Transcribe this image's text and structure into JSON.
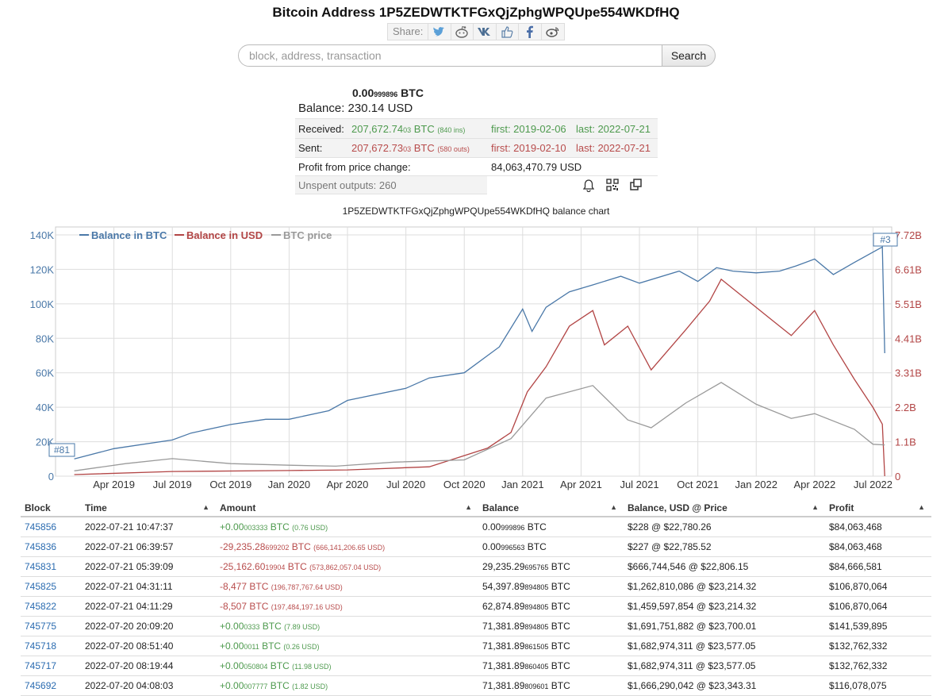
{
  "title": "Bitcoin Address 1P5ZEDWTKTFGxQjZphgWPQUpe554WKDfHQ",
  "share": {
    "label": "Share:",
    "icons": [
      "twitter-icon",
      "reddit-icon",
      "vk-icon",
      "like-icon",
      "facebook-icon",
      "weibo-icon"
    ]
  },
  "search": {
    "placeholder": "block, address, transaction",
    "button": "Search"
  },
  "summary": {
    "balance_btc_main": "0.00",
    "balance_btc_small": "999896",
    "balance_btc_unit": " BTC",
    "balance_usd": "Balance: 230.14 USD",
    "received_label": "Received:",
    "received_main": "207,672.74",
    "received_small": "03",
    "received_unit": " BTC",
    "received_ins": "(840 ins)",
    "received_first": "first: 2019-02-06",
    "received_last": "last: 2022-07-21",
    "sent_label": "Sent:",
    "sent_main": "207,672.73",
    "sent_small": "03",
    "sent_unit": " BTC",
    "sent_outs": "(580 outs)",
    "sent_first": "first: 2019-02-10",
    "sent_last": "last: 2022-07-21",
    "profit_label": "Profit from price change:",
    "profit_value": "84,063,470.79 USD",
    "unspent": "Unspent outputs: 260"
  },
  "chart_title": "1P5ZEDWTKTFGxQjZphgWPQUpe554WKDfHQ balance chart",
  "chart_data": {
    "type": "line",
    "x_ticks": [
      "Apr 2019",
      "Jul 2019",
      "Oct 2019",
      "Jan 2020",
      "Apr 2020",
      "Jul 2020",
      "Oct 2020",
      "Jan 2021",
      "Apr 2021",
      "Jul 2021",
      "Oct 2021",
      "Jan 2022",
      "Apr 2022",
      "Jul 2022"
    ],
    "y_left_ticks": [
      "140K",
      "120K",
      "100K",
      "80K",
      "60K",
      "40K",
      "20K",
      "0"
    ],
    "y_right_ticks": [
      "7.72B",
      "6.61B",
      "5.51B",
      "4.41B",
      "3.31B",
      "2.2B",
      "1.1B",
      "0"
    ],
    "ylim_left": [
      0,
      140000
    ],
    "ylim_right": [
      0,
      7.72
    ],
    "legend": [
      "Balance in BTC",
      "Balance in USD",
      "BTC price"
    ],
    "markers": [
      "#81",
      "#3"
    ],
    "colors": {
      "btc": "#4a78a8",
      "usd": "#b24545",
      "price": "#9a9a9a"
    },
    "series": [
      {
        "name": "Balance in BTC",
        "axis": "left",
        "x": [
          2019.08,
          2019.25,
          2019.5,
          2019.58,
          2019.75,
          2019.9,
          2020.0,
          2020.17,
          2020.25,
          2020.5,
          2020.6,
          2020.75,
          2020.9,
          2021.0,
          2021.04,
          2021.1,
          2021.2,
          2021.3,
          2021.42,
          2021.5,
          2021.67,
          2021.75,
          2021.83,
          2021.9,
          2022.0,
          2022.1,
          2022.17,
          2022.25,
          2022.33,
          2022.42,
          2022.5,
          2022.54,
          2022.55
        ],
        "values": [
          10000,
          16000,
          21000,
          25000,
          30000,
          33000,
          33000,
          38000,
          44000,
          51000,
          57000,
          60000,
          75000,
          97000,
          84000,
          98000,
          107000,
          111000,
          116000,
          112000,
          119000,
          113000,
          121000,
          119000,
          118000,
          119000,
          122000,
          126000,
          117000,
          124000,
          130000,
          133000,
          71381
        ]
      },
      {
        "name": "Balance in USD",
        "axis": "right",
        "x": [
          2019.08,
          2019.5,
          2020.0,
          2020.25,
          2020.6,
          2020.85,
          2020.95,
          2021.02,
          2021.1,
          2021.2,
          2021.3,
          2021.35,
          2021.45,
          2021.55,
          2021.7,
          2021.8,
          2021.85,
          2021.95,
          2022.05,
          2022.15,
          2022.25,
          2022.33,
          2022.42,
          2022.5,
          2022.54,
          2022.55
        ],
        "values": [
          0.05,
          0.15,
          0.18,
          0.2,
          0.3,
          0.9,
          1.4,
          2.7,
          3.5,
          4.8,
          5.3,
          4.2,
          4.8,
          3.4,
          4.7,
          5.6,
          6.3,
          5.7,
          5.1,
          4.5,
          5.3,
          4.2,
          3.1,
          2.2,
          1.66,
          0.0
        ]
      },
      {
        "name": "BTC price",
        "axis": "right",
        "x": [
          2019.08,
          2019.3,
          2019.5,
          2019.75,
          2020.0,
          2020.2,
          2020.45,
          2020.75,
          2020.95,
          2021.1,
          2021.3,
          2021.45,
          2021.55,
          2021.7,
          2021.85,
          2022.0,
          2022.15,
          2022.25,
          2022.42,
          2022.5,
          2022.55
        ],
        "values": [
          0.17,
          0.4,
          0.56,
          0.4,
          0.35,
          0.32,
          0.45,
          0.52,
          1.2,
          2.5,
          2.9,
          1.8,
          1.55,
          2.35,
          3.0,
          2.3,
          1.85,
          2.0,
          1.5,
          1.02,
          1.0
        ]
      }
    ]
  },
  "table": {
    "headers": [
      "Block",
      "Time",
      "Amount",
      "Balance",
      "Balance, USD @ Price",
      "Profit"
    ],
    "rows": [
      {
        "block": "745856",
        "time": "2022-07-21 10:47:37",
        "amt": "+0.00",
        "amt_s": "003333",
        "amt_u": " BTC",
        "amt_usd": "(0.76 USD)",
        "bal": "0.00",
        "bal_s": "999896",
        "bal_u": " BTC",
        "usd": "$228 @ $22,780.26",
        "profit": "$84,063,468",
        "pos": true
      },
      {
        "block": "745836",
        "time": "2022-07-21 06:39:57",
        "amt": "-29,235.28",
        "amt_s": "699202",
        "amt_u": " BTC",
        "amt_usd": "(666,141,206.65 USD)",
        "bal": "0.00",
        "bal_s": "996563",
        "bal_u": " BTC",
        "usd": "$227 @ $22,785.52",
        "profit": "$84,063,468",
        "pos": false
      },
      {
        "block": "745831",
        "time": "2022-07-21 05:39:09",
        "amt": "-25,162.60",
        "amt_s": "19904",
        "amt_u": " BTC",
        "amt_usd": "(573,862,057.04 USD)",
        "bal": "29,235.29",
        "bal_s": "695765",
        "bal_u": " BTC",
        "usd": "$666,744,546 @ $22,806.15",
        "profit": "$84,666,581",
        "pos": false
      },
      {
        "block": "745825",
        "time": "2022-07-21 04:31:11",
        "amt": "-8,477",
        "amt_s": "",
        "amt_u": " BTC",
        "amt_usd": "(196,787,767.64 USD)",
        "bal": "54,397.89",
        "bal_s": "894805",
        "bal_u": " BTC",
        "usd": "$1,262,810,086 @ $23,214.32",
        "profit": "$106,870,064",
        "pos": false
      },
      {
        "block": "745822",
        "time": "2022-07-21 04:11:29",
        "amt": "-8,507",
        "amt_s": "",
        "amt_u": " BTC",
        "amt_usd": "(197,484,197.16 USD)",
        "bal": "62,874.89",
        "bal_s": "894805",
        "bal_u": " BTC",
        "usd": "$1,459,597,854 @ $23,214.32",
        "profit": "$106,870,064",
        "pos": false
      },
      {
        "block": "745775",
        "time": "2022-07-20 20:09:20",
        "amt": "+0.00",
        "amt_s": "0333",
        "amt_u": " BTC",
        "amt_usd": "(7.89 USD)",
        "bal": "71,381.89",
        "bal_s": "894805",
        "bal_u": " BTC",
        "usd": "$1,691,751,882 @ $23,700.01",
        "profit": "$141,539,895",
        "pos": true
      },
      {
        "block": "745718",
        "time": "2022-07-20 08:51:40",
        "amt": "+0.00",
        "amt_s": "0011",
        "amt_u": " BTC",
        "amt_usd": "(0.26 USD)",
        "bal": "71,381.89",
        "bal_s": "861505",
        "bal_u": " BTC",
        "usd": "$1,682,974,311 @ $23,577.05",
        "profit": "$132,762,332",
        "pos": true
      },
      {
        "block": "745717",
        "time": "2022-07-20 08:19:44",
        "amt": "+0.00",
        "amt_s": "050804",
        "amt_u": " BTC",
        "amt_usd": "(11.98 USD)",
        "bal": "71,381.89",
        "bal_s": "860405",
        "bal_u": " BTC",
        "usd": "$1,682,974,311 @ $23,577.05",
        "profit": "$132,762,332",
        "pos": true
      },
      {
        "block": "745692",
        "time": "2022-07-20 04:08:03",
        "amt": "+0.00",
        "amt_s": "007777",
        "amt_u": " BTC",
        "amt_usd": "(1.82 USD)",
        "bal": "71,381.89",
        "bal_s": "809601",
        "bal_u": " BTC",
        "usd": "$1,666,290,042 @ $23,343.31",
        "profit": "$116,078,075",
        "pos": true
      }
    ]
  }
}
